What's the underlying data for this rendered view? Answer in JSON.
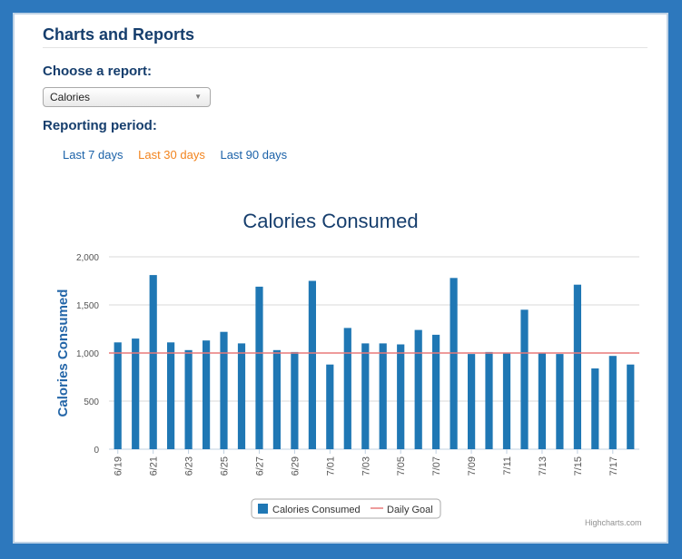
{
  "page": {
    "title": "Charts and Reports"
  },
  "report": {
    "label": "Choose a report:",
    "selected": "Calories"
  },
  "period": {
    "label": "Reporting period:",
    "options": [
      "Last 7 days",
      "Last 30 days",
      "Last 90 days"
    ],
    "active_index": 1
  },
  "colors": {
    "bar": "#1f77b4",
    "goal_line": "#e87a7a",
    "title": "#163e6d",
    "link": "#1a61a8",
    "active_link": "#f2841e"
  },
  "chart_data": {
    "type": "bar",
    "title": "Calories Consumed",
    "ylabel": "Calories Consumed",
    "xlabel": "",
    "ylim": [
      0,
      2000
    ],
    "yticks": [
      "0",
      "500",
      "1,000",
      "1,500",
      "2,000"
    ],
    "grid": true,
    "legend_position": "bottom",
    "categories": [
      "6/19",
      "6/20",
      "6/21",
      "6/22",
      "6/23",
      "6/24",
      "6/25",
      "6/26",
      "6/27",
      "6/28",
      "6/29",
      "6/30",
      "7/01",
      "7/02",
      "7/03",
      "7/04",
      "7/05",
      "7/06",
      "7/07",
      "7/08",
      "7/09",
      "7/10",
      "7/11",
      "7/12",
      "7/13",
      "7/14",
      "7/15",
      "7/16",
      "7/17",
      "7/18"
    ],
    "tick_labels": [
      "6/19",
      "6/21",
      "6/23",
      "6/25",
      "6/27",
      "6/29",
      "7/01",
      "7/03",
      "7/05",
      "7/07",
      "7/09",
      "7/11",
      "7/13",
      "7/15",
      "7/17"
    ],
    "series": [
      {
        "name": "Calories Consumed",
        "type": "bar",
        "values": [
          1110,
          1150,
          1810,
          1110,
          1030,
          1130,
          1220,
          1100,
          1690,
          1030,
          1010,
          1750,
          880,
          1260,
          1100,
          1100,
          1090,
          1240,
          1190,
          1780,
          990,
          1010,
          1000,
          1450,
          1000,
          990,
          1710,
          840,
          970,
          880
        ]
      },
      {
        "name": "Daily Goal",
        "type": "line",
        "value": 1000
      }
    ],
    "credit": "Highcharts.com"
  }
}
